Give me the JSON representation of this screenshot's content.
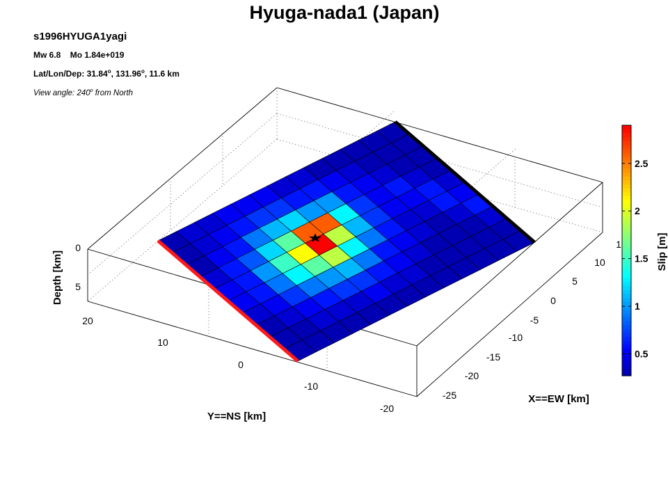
{
  "chart_data": {
    "type": "heatmap",
    "title": "Hyuga-nada1 (Japan)",
    "subtitle": "s1996HYUGA1yagi",
    "info": {
      "mw_label": "Mw 6.8",
      "mo_label": "Mo 1.84e+019",
      "location_prefix": "Lat/Lon/Dep: 31.84",
      "location_mid": ", 131.96",
      "location_suffix": ", 11.6 km",
      "degree_mark": "o",
      "view_prefix": "View angle: 240",
      "view_suffix": " from North"
    },
    "axes": {
      "xlabel": "X==EW [km]",
      "ylabel": "Y==NS [km]",
      "zlabel": "Depth [km]",
      "x_ticks": [
        "-25",
        "-20",
        "-15",
        "-10",
        "-5",
        "0",
        "5",
        "10",
        "1"
      ],
      "y_ticks": [
        "20",
        "10",
        "0",
        "-10",
        "-20"
      ],
      "z_ticks": [
        "0",
        "5"
      ],
      "box_grid": true
    },
    "colorbar": {
      "label": "Slip [m]",
      "range": [
        0.27,
        2.9
      ],
      "ticks": [
        "0.5",
        "1",
        "1.5",
        "2",
        "2.5"
      ],
      "tick_values": [
        0.5,
        1,
        1.5,
        2,
        2.5
      ],
      "colormap": "jet"
    },
    "fault_lines": {
      "top_edge_color": "#ff1a1a",
      "bottom_edge_color": "#000000"
    },
    "slip": [
      [
        0.3,
        0.3,
        0.3,
        0.4,
        0.5,
        0.5,
        0.4,
        0.3,
        0.3,
        0.3
      ],
      [
        0.4,
        0.4,
        0.5,
        0.6,
        0.6,
        0.6,
        0.5,
        0.4,
        0.3,
        0.3
      ],
      [
        0.4,
        0.5,
        0.6,
        0.8,
        1.0,
        0.9,
        0.7,
        0.5,
        0.4,
        0.3
      ],
      [
        0.5,
        0.6,
        0.9,
        1.2,
        1.5,
        1.3,
        0.9,
        0.6,
        0.4,
        0.3
      ],
      [
        0.5,
        0.7,
        1.1,
        1.6,
        2.1,
        1.6,
        1.0,
        0.7,
        0.4,
        0.3
      ],
      [
        0.5,
        0.7,
        1.2,
        2.6,
        2.9,
        1.9,
        1.1,
        0.7,
        0.5,
        0.3
      ],
      [
        0.4,
        0.6,
        1.0,
        2.6,
        1.9,
        1.3,
        0.9,
        0.6,
        0.4,
        0.3
      ],
      [
        0.4,
        0.6,
        1.0,
        1.3,
        1.1,
        0.9,
        0.6,
        0.5,
        0.4,
        0.3
      ],
      [
        0.3,
        0.5,
        0.6,
        0.7,
        0.7,
        0.6,
        0.5,
        0.4,
        0.3,
        0.3
      ],
      [
        0.3,
        0.4,
        0.5,
        0.5,
        0.5,
        0.4,
        0.4,
        0.3,
        0.3,
        0.3
      ],
      [
        0.3,
        0.3,
        0.4,
        0.6,
        0.5,
        0.4,
        0.3,
        0.3,
        0.3,
        0.3
      ],
      [
        0.3,
        0.3,
        0.3,
        0.4,
        0.6,
        0.6,
        0.4,
        0.3,
        0.3,
        0.3
      ],
      [
        0.3,
        0.3,
        0.3,
        0.3,
        0.4,
        0.5,
        0.6,
        0.4,
        0.3,
        0.3
      ]
    ]
  }
}
